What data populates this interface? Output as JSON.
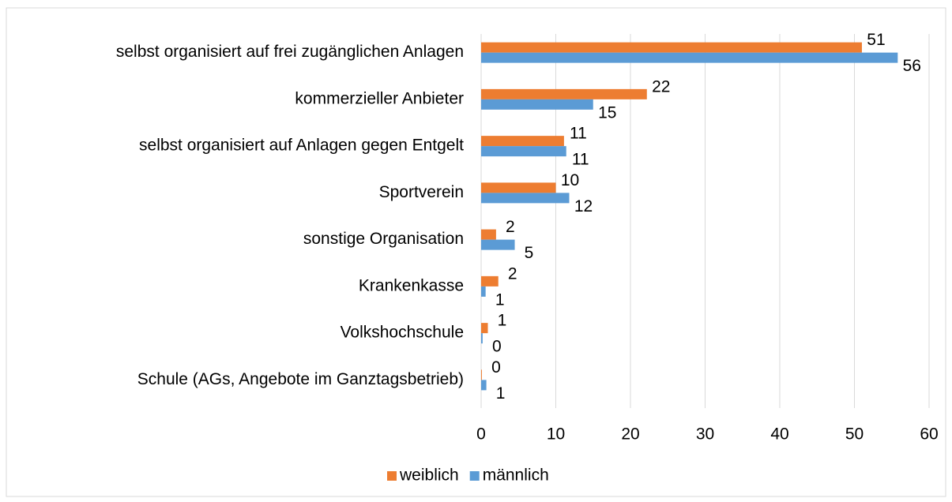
{
  "chart_data": {
    "type": "hbar",
    "categories": [
      "selbst organisiert auf frei zugänglichen Anlagen",
      "kommerzieller Anbieter ",
      "selbst organisiert auf Anlagen gegen Entgelt",
      "Sportverein",
      "sonstige Organisation",
      "Krankenkasse",
      "Volkshochschule",
      "Schule (AGs, Angebote im Ganztagsbetrieb)"
    ],
    "series": [
      {
        "name": "weiblich",
        "color": "#ed7d31",
        "values": [
          51,
          22.2,
          11.1,
          10,
          2,
          2.3,
          0.9,
          0.1
        ],
        "value_labels": [
          "51",
          "22",
          "11",
          "10",
          "2",
          "2",
          "1",
          "0"
        ]
      },
      {
        "name": "männlich",
        "color": "#5b9bd5",
        "values": [
          55.8,
          15,
          11.4,
          11.8,
          4.5,
          0.6,
          0.2,
          0.7
        ],
        "value_labels": [
          "56",
          "15",
          "11",
          "12",
          "5",
          "1",
          "0",
          "1"
        ]
      }
    ],
    "xlim": [
      0,
      60
    ],
    "xticks": [
      0,
      10,
      20,
      30,
      40,
      50,
      60
    ],
    "grid": true,
    "legend": "bottom"
  }
}
